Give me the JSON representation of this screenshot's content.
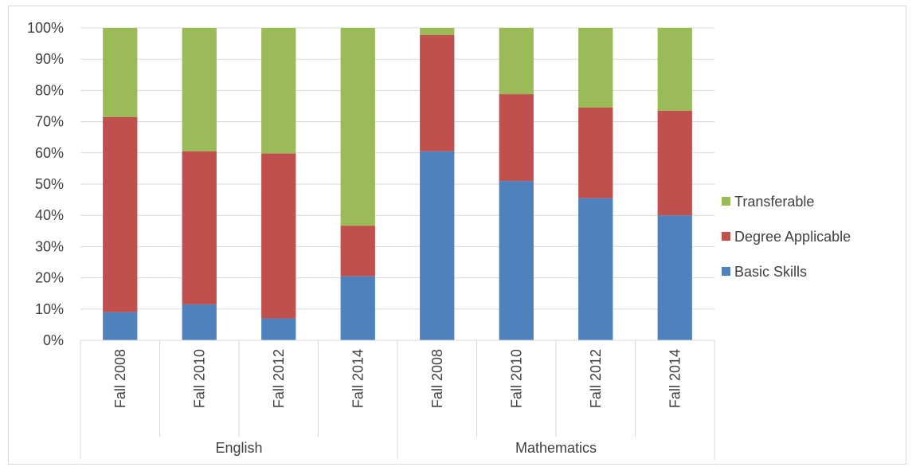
{
  "chart_data": {
    "type": "bar",
    "stacked": true,
    "groups": [
      {
        "label": "English",
        "categories": [
          "Fall 2008",
          "Fall 2010",
          "Fall 2012",
          "Fall 2014"
        ]
      },
      {
        "label": "Mathematics",
        "categories": [
          "Fall 2008",
          "Fall 2010",
          "Fall 2012",
          "Fall 2014"
        ]
      }
    ],
    "series": [
      {
        "name": "Basic Skills",
        "color": "#4f81bd",
        "values": [
          9,
          11.5,
          7,
          20.5,
          60.5,
          51,
          45.5,
          40
        ]
      },
      {
        "name": "Degree Applicable",
        "color": "#c0504d",
        "values": [
          62.5,
          49,
          52.8,
          16.2,
          37.2,
          27.8,
          29,
          33.5
        ]
      },
      {
        "name": "Transferable",
        "color": "#9bbb59",
        "values": [
          28.5,
          39.5,
          40.2,
          63.3,
          2.3,
          21.2,
          25.5,
          26.5
        ]
      }
    ],
    "yticks": [
      "0%",
      "10%",
      "20%",
      "30%",
      "40%",
      "50%",
      "60%",
      "70%",
      "80%",
      "90%",
      "100%"
    ],
    "ylim": [
      0,
      100
    ],
    "grid": true,
    "legend_position": "right",
    "legend_order": [
      "Transferable",
      "Degree Applicable",
      "Basic Skills"
    ],
    "title": "",
    "xlabel": "",
    "ylabel": ""
  }
}
